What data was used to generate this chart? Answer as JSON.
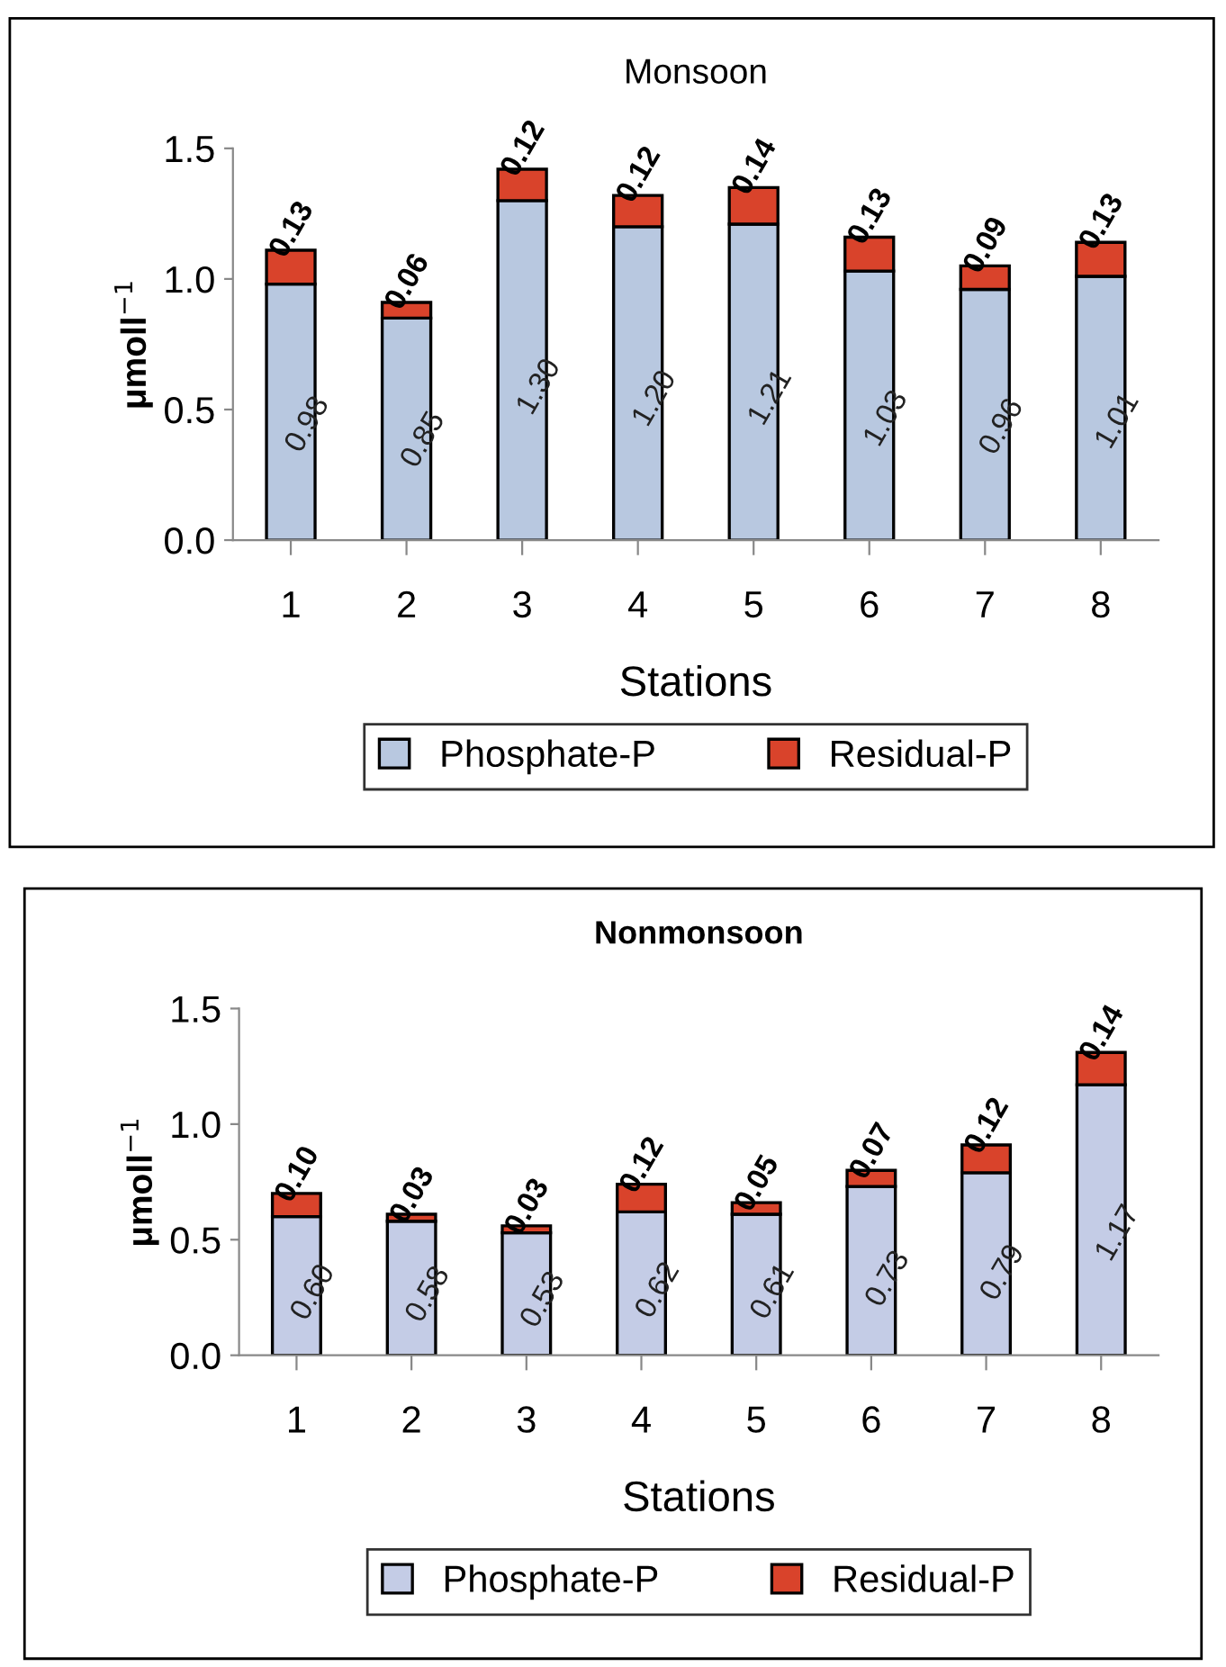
{
  "chart_data": [
    {
      "type": "bar",
      "title": "Monsoon",
      "xlabel": "Stations",
      "ylabel": "μmoll$^{−1}$",
      "categories": [
        "1",
        "2",
        "3",
        "4",
        "5",
        "6",
        "7",
        "8"
      ],
      "stacked": true,
      "legend": "bottom",
      "grid": false,
      "ylim": [
        0,
        1.5
      ],
      "yticks": [
        {
          "value": 0,
          "label": "0.0"
        },
        {
          "value": 0.5,
          "label": "0.5"
        },
        {
          "value": 1,
          "label": "1.0"
        },
        {
          "value": 1.5,
          "label": "1.5"
        }
      ],
      "series": [
        {
          "name": "Phosphate-P",
          "color": "#b8c8e0",
          "values": [
            0.98,
            0.85,
            1.3,
            1.2,
            1.21,
            1.03,
            0.96,
            1.01
          ],
          "value_labels": [
            "0.98",
            "0.85",
            "1.30",
            "1.20",
            "1.21",
            "1.03",
            "0.96",
            "1.01"
          ]
        },
        {
          "name": "Residual-P",
          "color": "#d9432b",
          "values": [
            0.13,
            0.06,
            0.12,
            0.12,
            0.14,
            0.13,
            0.09,
            0.13
          ],
          "value_labels": [
            "0.13",
            "0.06",
            "0.12",
            "0.12",
            "0.14",
            "0.13",
            "0.09",
            "0.13"
          ]
        }
      ]
    },
    {
      "type": "bar",
      "title": "Nonmonsoon",
      "xlabel": "Stations",
      "ylabel": "μmoll$^{−1}$",
      "categories": [
        "1",
        "2",
        "3",
        "4",
        "5",
        "6",
        "7",
        "8"
      ],
      "stacked": true,
      "legend": "bottom",
      "grid": false,
      "ylim": [
        0,
        1.5
      ],
      "yticks": [
        {
          "value": 0,
          "label": "0.0"
        },
        {
          "value": 0.5,
          "label": "0.5"
        },
        {
          "value": 1,
          "label": "1.0"
        },
        {
          "value": 1.5,
          "label": "1.5"
        }
      ],
      "series": [
        {
          "name": "Phosphate-P",
          "color": "#c4cce6",
          "values": [
            0.6,
            0.58,
            0.53,
            0.62,
            0.61,
            0.73,
            0.79,
            1.17
          ],
          "value_labels": [
            "0.60",
            "0.58",
            "0.53",
            "0.62",
            "0.61",
            "0.73",
            "0.79",
            "1.17"
          ]
        },
        {
          "name": "Residual-P",
          "color": "#d9432b",
          "values": [
            0.1,
            0.03,
            0.03,
            0.12,
            0.05,
            0.07,
            0.12,
            0.14
          ],
          "value_labels": [
            "0.10",
            "0.03",
            "0.03",
            "0.12",
            "0.05",
            "0.07",
            "0.12",
            "0.14"
          ]
        }
      ]
    }
  ]
}
